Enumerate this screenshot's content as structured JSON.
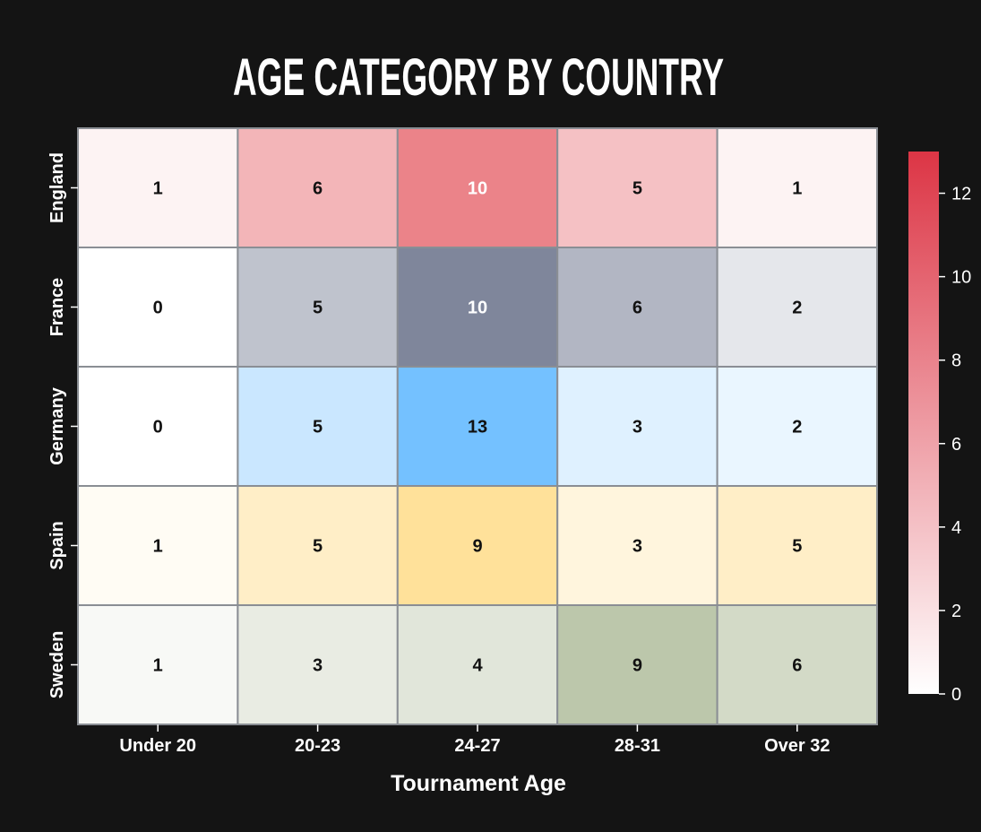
{
  "chart_data": {
    "type": "heatmap",
    "title": "AGE CATEGORY BY COUNTRY",
    "xlabel": "Tournament Age",
    "ylabel": "",
    "categories": [
      "Under 20",
      "20-23",
      "24-27",
      "28-31",
      "Over 32"
    ],
    "rows": [
      "England",
      "France",
      "Germany",
      "Spain",
      "Sweden"
    ],
    "values": [
      [
        1,
        6,
        10,
        5,
        1
      ],
      [
        0,
        5,
        10,
        6,
        2
      ],
      [
        0,
        5,
        13,
        3,
        2
      ],
      [
        1,
        5,
        9,
        3,
        5
      ],
      [
        1,
        3,
        4,
        9,
        6
      ]
    ],
    "row_colors": [
      "#e0404a",
      "#3a4565",
      "#4db0ff",
      "#ffd060",
      "#8da070"
    ],
    "row_vmax": [
      12,
      12,
      13,
      11,
      12
    ],
    "colorbar": {
      "ticks": [
        0,
        2,
        4,
        6,
        8,
        10,
        12
      ],
      "range": [
        0,
        13
      ],
      "color_low": "#ffffff",
      "color_high": "#dc3545"
    },
    "grid": true
  }
}
